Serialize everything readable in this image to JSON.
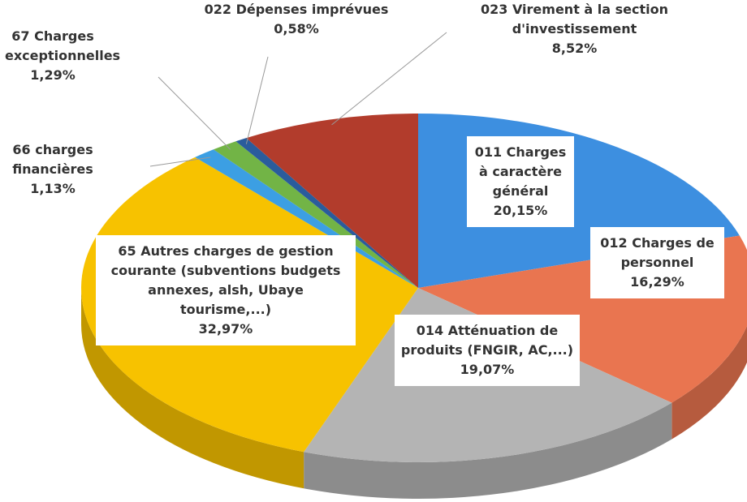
{
  "chart_data": {
    "type": "pie3d",
    "categories": [
      "011 Charges à caractère général",
      "012 Charges de personnel",
      "014 Atténuation de produits (FNGIR, AC,...)",
      "65 Autres charges de gestion courante (subventions budgets annexes, alsh, Ubaye tourisme,...)",
      "66 charges financières",
      "67 Charges exceptionnelles",
      "022 Dépenses imprévues",
      "023 Virement à la section d'investissement"
    ],
    "values": [
      20.15,
      16.29,
      19.07,
      32.97,
      1.13,
      1.29,
      0.58,
      8.52
    ],
    "value_labels": [
      "20,15%",
      "16,29%",
      "19,07%",
      "32,97%",
      "1,13%",
      "1,29%",
      "0,58%",
      "8,52%"
    ],
    "colors": [
      "#3d8fe0",
      "#e97550",
      "#b4b4b4",
      "#f7c200",
      "#3c9fe3",
      "#72b446",
      "#2a5c9c",
      "#b23c2c"
    ]
  }
}
